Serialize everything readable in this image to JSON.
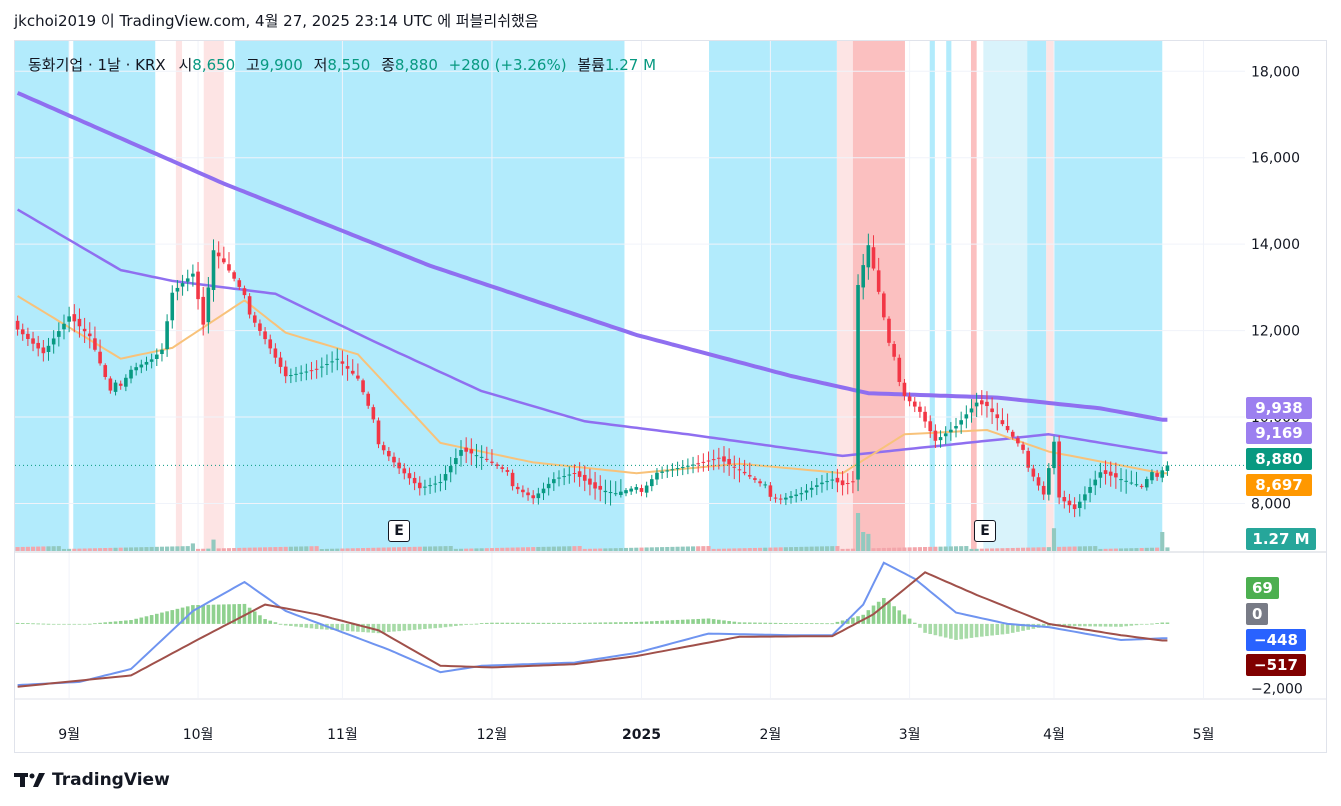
{
  "header": {
    "text": "jkchoi2019 이 TradingView.com, 4월 27, 2025 23:14 UTC 에 퍼블리쉬했음"
  },
  "legend": {
    "symbol": "동화기업 · 1날 · KRX",
    "open_label": "시",
    "open": "8,650",
    "high_label": "고",
    "high": "9,900",
    "low_label": "저",
    "low": "8,550",
    "close_label": "종",
    "close": "8,880",
    "change": "+280 (+3.26%)",
    "volume_label": "볼륨",
    "volume": "1.27 M"
  },
  "footer": {
    "brand": "TradingView"
  },
  "badges": {
    "ma_long": {
      "text": "9,938",
      "color": "#9c7ff0"
    },
    "ma_mid": {
      "text": "9,169",
      "color": "#9c7ff0"
    },
    "last": {
      "text": "8,880",
      "color": "#089981"
    },
    "ma_short": {
      "text": "8,697",
      "color": "#ff9800"
    },
    "volume": {
      "text": "1.27 M",
      "color": "#26a69a"
    },
    "macd_hist": {
      "text": "69",
      "color": "#4caf50"
    },
    "macd_zero": {
      "text": "0",
      "color": "#787b86"
    },
    "macd_line": {
      "text": "−448",
      "color": "#2962ff"
    },
    "macd_signal": {
      "text": "−517",
      "color": "#800000"
    }
  },
  "earnings": [
    {
      "label": "E",
      "date_index": 50
    },
    {
      "label": "E",
      "date_index": 180
    }
  ],
  "colors": {
    "up": "#089981",
    "down": "#f23645",
    "bg_blue": "#b2ebfc",
    "bg_red": "#fbc0c0",
    "bg_pink": "#fde4e4",
    "bg_lightblue": "#d9f3fb"
  },
  "chart_data": {
    "type": "candlestick",
    "x_labels": [
      {
        "label": "9월",
        "index": 10
      },
      {
        "label": "10월",
        "index": 35
      },
      {
        "label": "11월",
        "index": 63
      },
      {
        "label": "12월",
        "index": 92
      },
      {
        "label": "2025",
        "index": 121
      },
      {
        "label": "2월",
        "index": 146
      },
      {
        "label": "3월",
        "index": 173
      },
      {
        "label": "4월",
        "index": 201
      },
      {
        "label": "5월",
        "index": 230
      }
    ],
    "y_ticks": [
      "18,000",
      "16,000",
      "14,000",
      "12,000",
      "10,000",
      "8,000"
    ],
    "y_values": [
      18000,
      16000,
      14000,
      12000,
      10000,
      8000
    ],
    "ylim": [
      6900,
      18700
    ],
    "macd_ticks": [
      {
        "label": "−2,000",
        "value": -2000
      }
    ],
    "bars": 224,
    "close_key": [
      [
        0,
        12100
      ],
      [
        5,
        11500
      ],
      [
        10,
        12300
      ],
      [
        14,
        11800
      ],
      [
        18,
        10500
      ],
      [
        22,
        11200
      ],
      [
        26,
        11400
      ],
      [
        28,
        11600
      ],
      [
        30,
        12900
      ],
      [
        34,
        13300
      ],
      [
        36,
        12100
      ],
      [
        38,
        13800
      ],
      [
        40,
        13500
      ],
      [
        44,
        12700
      ],
      [
        48,
        11900
      ],
      [
        52,
        11000
      ],
      [
        58,
        11100
      ],
      [
        62,
        11300
      ],
      [
        66,
        10800
      ],
      [
        70,
        9500
      ],
      [
        74,
        8900
      ],
      [
        78,
        8400
      ],
      [
        82,
        8500
      ],
      [
        86,
        9200
      ],
      [
        90,
        9000
      ],
      [
        95,
        8600
      ],
      [
        100,
        8200
      ],
      [
        104,
        8600
      ],
      [
        108,
        8700
      ],
      [
        112,
        8300
      ],
      [
        116,
        8150
      ],
      [
        120,
        8250
      ],
      [
        124,
        8800
      ],
      [
        130,
        8900
      ],
      [
        136,
        9000
      ],
      [
        140,
        8700
      ],
      [
        144,
        8350
      ],
      [
        148,
        8200
      ],
      [
        152,
        8300
      ],
      [
        156,
        8500
      ],
      [
        158,
        8550
      ],
      [
        160,
        8400
      ],
      [
        162,
        8450
      ],
      [
        163,
        13000
      ],
      [
        165,
        13900
      ],
      [
        167,
        12800
      ],
      [
        169,
        11600
      ],
      [
        172,
        10600
      ],
      [
        175,
        10200
      ],
      [
        178,
        9500
      ],
      [
        182,
        9800
      ],
      [
        186,
        10300
      ],
      [
        188,
        10200
      ],
      [
        192,
        9600
      ],
      [
        196,
        8950
      ],
      [
        199,
        8300
      ],
      [
        201,
        9500
      ],
      [
        202,
        8200
      ],
      [
        205,
        7900
      ],
      [
        210,
        8700
      ],
      [
        214,
        8500
      ],
      [
        218,
        8300
      ],
      [
        220,
        8600
      ],
      [
        222,
        8880
      ]
    ],
    "ma_long_key": [
      [
        0,
        17500
      ],
      [
        40,
        15400
      ],
      [
        80,
        13500
      ],
      [
        120,
        11900
      ],
      [
        150,
        10950
      ],
      [
        165,
        10550
      ],
      [
        190,
        10450
      ],
      [
        210,
        10200
      ],
      [
        222,
        9938
      ]
    ],
    "ma_mid_key": [
      [
        0,
        14800
      ],
      [
        20,
        13400
      ],
      [
        30,
        13150
      ],
      [
        50,
        12850
      ],
      [
        70,
        11700
      ],
      [
        90,
        10600
      ],
      [
        110,
        9900
      ],
      [
        130,
        9600
      ],
      [
        160,
        9100
      ],
      [
        180,
        9350
      ],
      [
        200,
        9600
      ],
      [
        222,
        9169
      ]
    ],
    "ma_short_key": [
      [
        0,
        12800
      ],
      [
        20,
        11350
      ],
      [
        30,
        11600
      ],
      [
        44,
        12700
      ],
      [
        52,
        11950
      ],
      [
        66,
        11450
      ],
      [
        82,
        9400
      ],
      [
        100,
        8950
      ],
      [
        120,
        8700
      ],
      [
        140,
        8920
      ],
      [
        160,
        8700
      ],
      [
        172,
        9600
      ],
      [
        188,
        9700
      ],
      [
        200,
        9200
      ],
      [
        222,
        8697
      ]
    ],
    "macd_key": [
      [
        0,
        -1900
      ],
      [
        12,
        -1800
      ],
      [
        22,
        -1400
      ],
      [
        34,
        400
      ],
      [
        44,
        1300
      ],
      [
        52,
        400
      ],
      [
        62,
        -200
      ],
      [
        72,
        -800
      ],
      [
        82,
        -1500
      ],
      [
        90,
        -1300
      ],
      [
        108,
        -1200
      ],
      [
        120,
        -900
      ],
      [
        134,
        -300
      ],
      [
        150,
        -350
      ],
      [
        158,
        -350
      ],
      [
        164,
        600
      ],
      [
        168,
        1900
      ],
      [
        174,
        1400
      ],
      [
        182,
        350
      ],
      [
        192,
        0
      ],
      [
        200,
        -100
      ],
      [
        214,
        -500
      ],
      [
        222,
        -448
      ]
    ],
    "signal_key": [
      [
        0,
        -1950
      ],
      [
        22,
        -1600
      ],
      [
        36,
        -400
      ],
      [
        48,
        600
      ],
      [
        58,
        300
      ],
      [
        70,
        -200
      ],
      [
        82,
        -1300
      ],
      [
        92,
        -1350
      ],
      [
        108,
        -1250
      ],
      [
        120,
        -1000
      ],
      [
        140,
        -400
      ],
      [
        158,
        -380
      ],
      [
        166,
        300
      ],
      [
        176,
        1600
      ],
      [
        186,
        900
      ],
      [
        200,
        0
      ],
      [
        214,
        -350
      ],
      [
        222,
        -517
      ]
    ],
    "volume_spikes": [
      [
        163,
        1.0
      ],
      [
        164,
        0.5
      ],
      [
        165,
        0.45
      ],
      [
        201,
        0.6
      ],
      [
        222,
        0.5
      ],
      [
        34,
        0.2
      ],
      [
        38,
        0.3
      ]
    ],
    "background_bands": [
      {
        "from": 0,
        "to": 10.5,
        "color": "bg_blue"
      },
      {
        "from": 11.3,
        "to": 27.2,
        "color": "bg_blue"
      },
      {
        "from": 31.2,
        "to": 32.4,
        "color": "bg_pink"
      },
      {
        "from": 36.6,
        "to": 40.5,
        "color": "bg_pink"
      },
      {
        "from": 42.7,
        "to": 118.2,
        "color": "bg_blue"
      },
      {
        "from": 134.6,
        "to": 159.4,
        "color": "bg_blue"
      },
      {
        "from": 159.4,
        "to": 162.5,
        "color": "bg_pink"
      },
      {
        "from": 162.5,
        "to": 172.6,
        "color": "bg_red"
      },
      {
        "from": 177.4,
        "to": 178.4,
        "color": "bg_blue"
      },
      {
        "from": 180.6,
        "to": 181.6,
        "color": "bg_blue"
      },
      {
        "from": 185.4,
        "to": 186.5,
        "color": "bg_red"
      },
      {
        "from": 187.8,
        "to": 196.3,
        "color": "bg_lightblue"
      },
      {
        "from": 196.3,
        "to": 200.0,
        "color": "bg_blue"
      },
      {
        "from": 200.0,
        "to": 201.5,
        "color": "bg_pink"
      },
      {
        "from": 201.5,
        "to": 222.5,
        "color": "bg_blue"
      }
    ]
  }
}
